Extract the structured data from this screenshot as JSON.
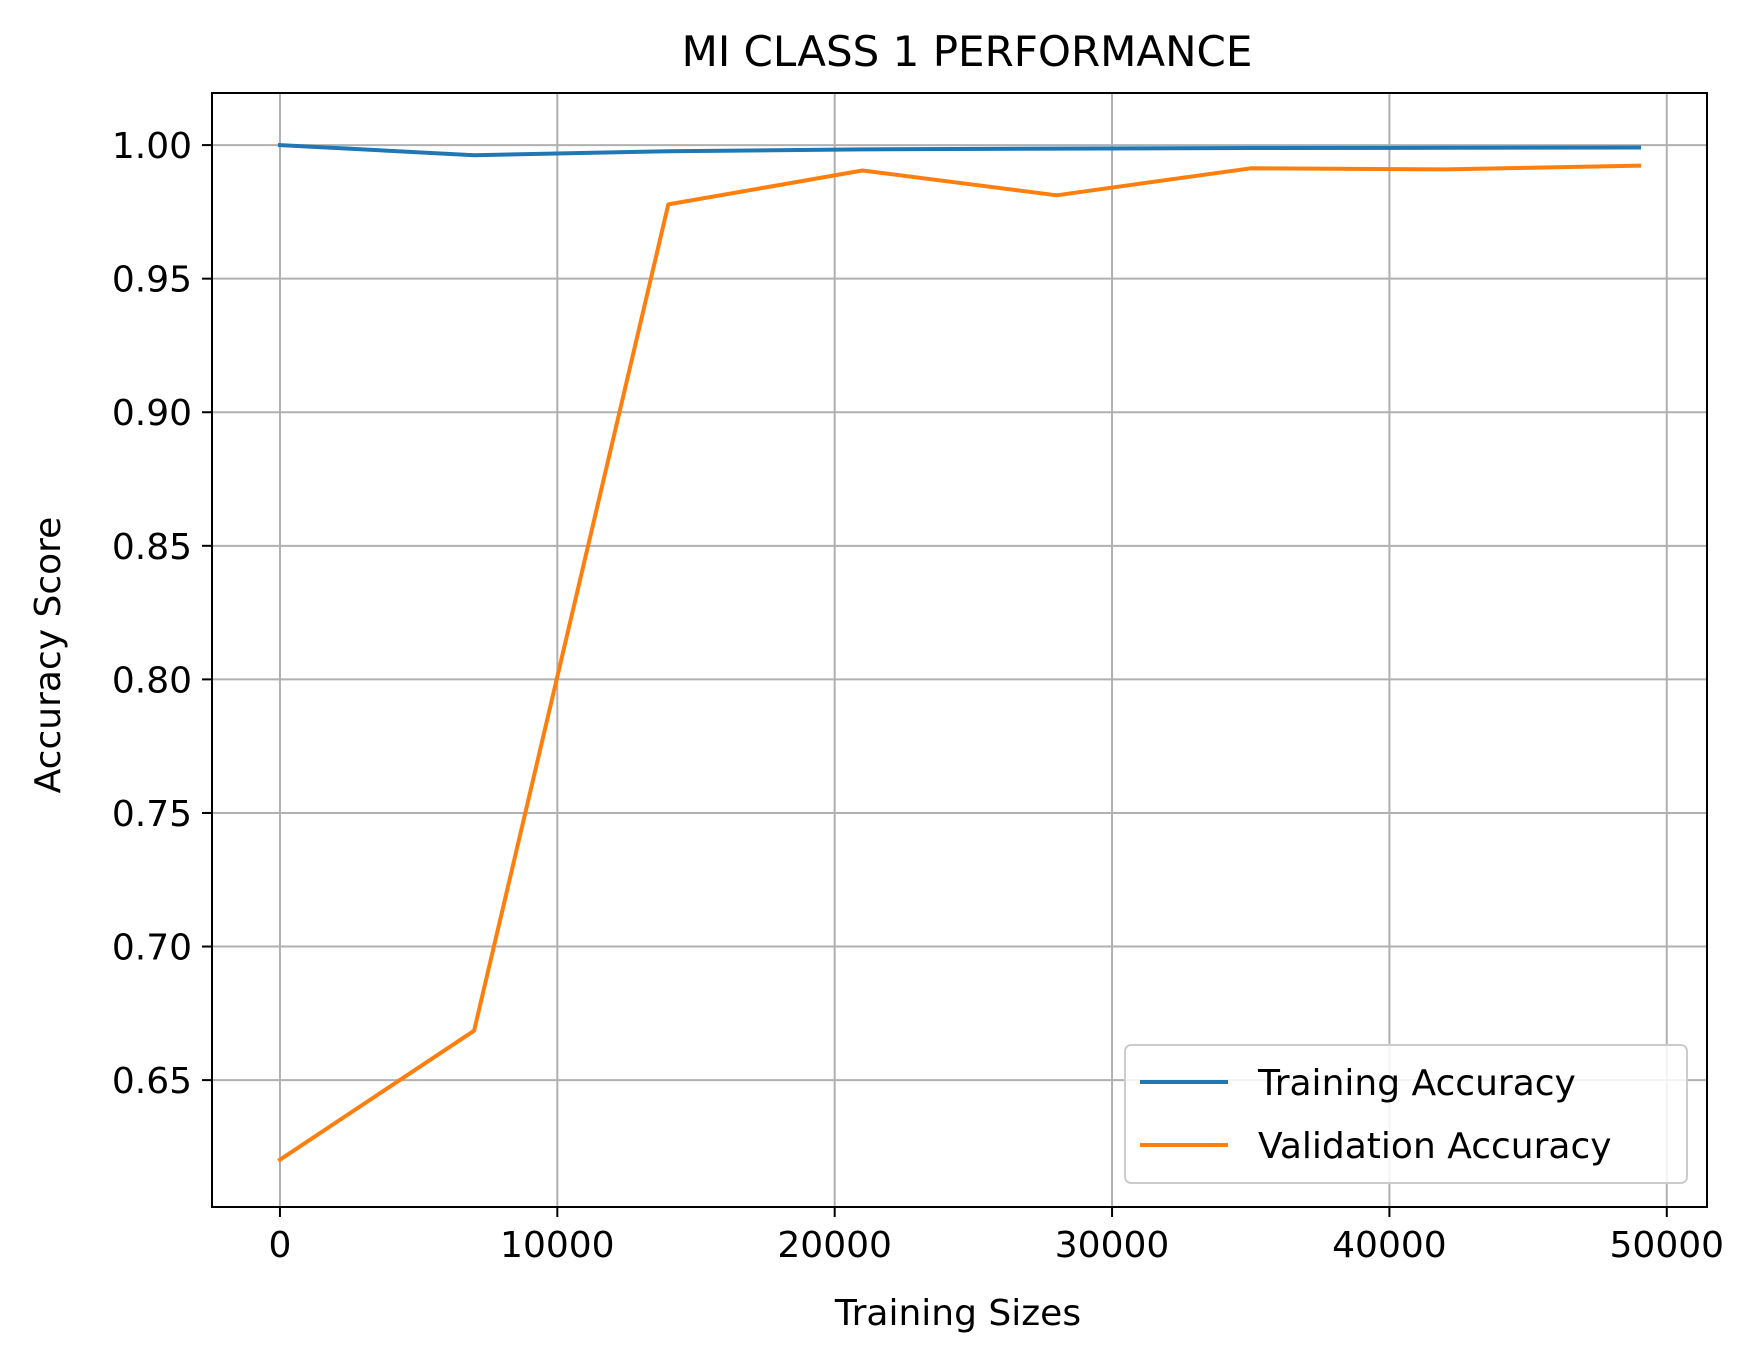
{
  "chart_data": {
    "type": "line",
    "title": "MI CLASS 1 PERFORMANCE",
    "xlabel": "Training Sizes",
    "ylabel": "Accuracy Score",
    "xlim": [
      -2450,
      51450
    ],
    "ylim": [
      0.6025,
      1.0195
    ],
    "xticks": [
      0,
      10000,
      20000,
      30000,
      40000,
      50000
    ],
    "xtick_labels": [
      "0",
      "10000",
      "20000",
      "30000",
      "40000",
      "50000"
    ],
    "yticks": [
      0.65,
      0.7,
      0.75,
      0.8,
      0.85,
      0.9,
      0.95,
      1.0
    ],
    "ytick_labels": [
      "0.65",
      "0.70",
      "0.75",
      "0.80",
      "0.85",
      "0.90",
      "0.95",
      "1.00"
    ],
    "grid": true,
    "legend_position": "lower-right",
    "x": [
      0,
      7000,
      14000,
      21000,
      28000,
      35000,
      42000,
      49000
    ],
    "series": [
      {
        "name": "Training Accuracy",
        "color": "#1f77b4",
        "values": [
          1.0,
          0.9962,
          0.9977,
          0.9984,
          0.9987,
          0.9989,
          0.999,
          0.9991
        ]
      },
      {
        "name": "Validation Accuracy",
        "color": "#ff7f0e",
        "values": [
          0.6202,
          0.6685,
          0.9778,
          0.9905,
          0.9812,
          0.9913,
          0.9909,
          0.9923
        ]
      }
    ]
  }
}
